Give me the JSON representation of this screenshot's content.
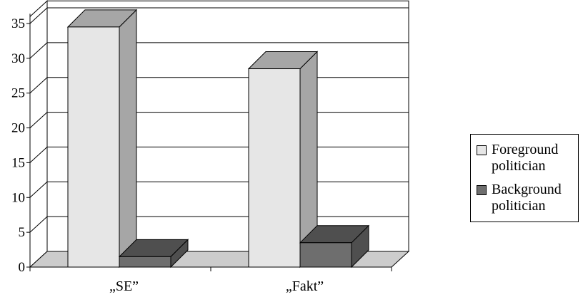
{
  "chart_data": {
    "type": "bar",
    "categories": [
      "„SE”",
      "„Fakt”"
    ],
    "series": [
      {
        "name": "Foreground politician",
        "values": [
          34.5,
          28.5
        ],
        "color": "#e6e6e6"
      },
      {
        "name": "Background politician",
        "values": [
          1.5,
          3.5
        ],
        "color": "#6e6e6e"
      }
    ],
    "yticks": [
      0,
      5,
      10,
      15,
      20,
      25,
      30,
      35
    ],
    "ylim": [
      0,
      36
    ],
    "grid": true,
    "legend": "right",
    "title": "",
    "xlabel": "",
    "ylabel": ""
  }
}
